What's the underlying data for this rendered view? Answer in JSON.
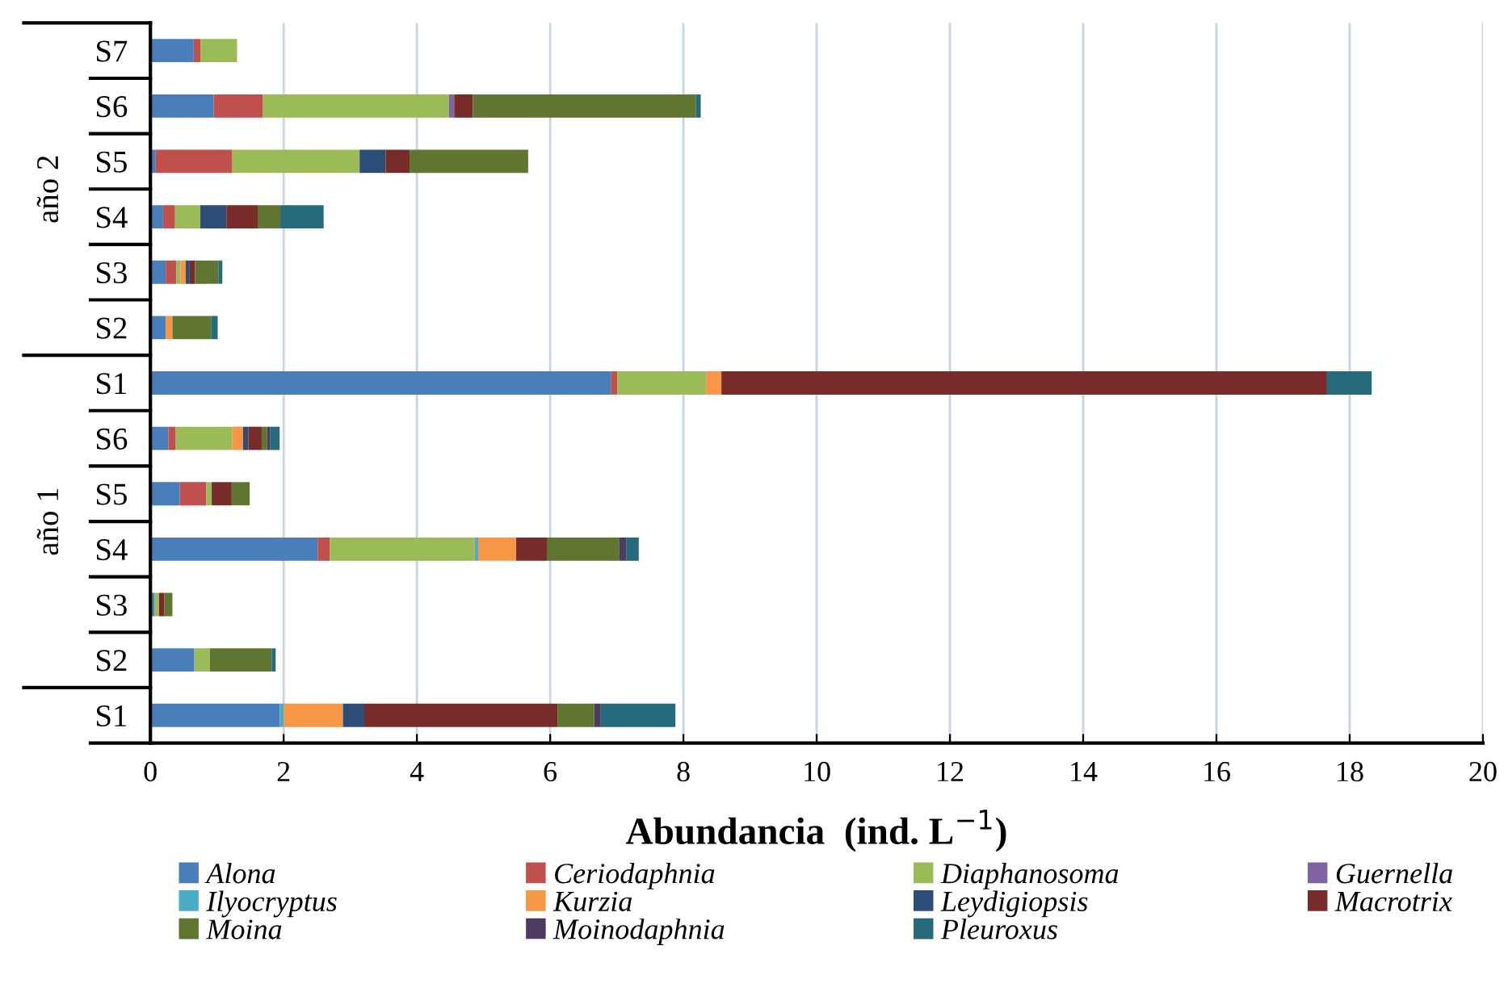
{
  "chart_data": {
    "type": "bar",
    "orientation": "horizontal",
    "stacked": true,
    "xlabel": "Abundancia  (ind. L$^{−1}$)",
    "categories": [
      "S7",
      "S6",
      "S5",
      "S4",
      "S3",
      "S2",
      "S1",
      "S6",
      "S5",
      "S4",
      "S3",
      "S2",
      "S1"
    ],
    "annotations": [
      "año 2",
      "año 1"
    ],
    "xlim": [
      0,
      20
    ],
    "xticks": [
      0,
      2,
      4,
      6,
      8,
      10,
      12,
      14,
      16,
      18,
      20
    ],
    "grid": "x",
    "legend": "bottom",
    "series": [
      {
        "name": "Alona",
        "color": "#4a7ebb",
        "values": [
          0.65,
          0.95,
          0.08,
          0.19,
          0.23,
          0.23,
          6.91,
          0.27,
          0.44,
          2.51,
          0.06,
          0.66,
          1.94
        ]
      },
      {
        "name": "Ceriodaphnia",
        "color": "#c0504d",
        "values": [
          0.1,
          0.74,
          1.15,
          0.18,
          0.16,
          0,
          0.1,
          0.11,
          0.4,
          0.18,
          0,
          0,
          0
        ]
      },
      {
        "name": "Diaphanosoma",
        "color": "#9bbb59",
        "values": [
          0.55,
          2.79,
          1.91,
          0.38,
          0.06,
          0,
          1.33,
          0.85,
          0.08,
          2.18,
          0.07,
          0.23,
          0
        ]
      },
      {
        "name": "Guernella",
        "color": "#8064a2",
        "values": [
          0,
          0.08,
          0,
          0,
          0,
          0,
          0,
          0,
          0,
          0,
          0,
          0,
          0
        ]
      },
      {
        "name": "Ilyocryptus",
        "color": "#4bacc6",
        "values": [
          0,
          0,
          0,
          0,
          0,
          0,
          0,
          0,
          0,
          0.05,
          0,
          0,
          0.06
        ]
      },
      {
        "name": "Kurzia",
        "color": "#f79646",
        "values": [
          0,
          0,
          0,
          0,
          0.08,
          0.1,
          0.23,
          0.16,
          0,
          0.57,
          0,
          0,
          0.89
        ]
      },
      {
        "name": "Leydigiopsis",
        "color": "#2c4d75",
        "values": [
          0,
          0,
          0.39,
          0.39,
          0.06,
          0,
          0,
          0.08,
          0,
          0,
          0,
          0,
          0.32
        ]
      },
      {
        "name": "Macrotrix",
        "color": "#772c2a",
        "values": [
          0,
          0.28,
          0.36,
          0.47,
          0.08,
          0,
          9.09,
          0.2,
          0.3,
          0.46,
          0.08,
          0,
          2.9
        ]
      },
      {
        "name": "Moina",
        "color": "#5f7530",
        "values": [
          0,
          3.35,
          1.78,
          0.34,
          0.35,
          0.58,
          0,
          0.08,
          0.27,
          1.09,
          0.12,
          0.93,
          0.55
        ]
      },
      {
        "name": "Moinodaphnia",
        "color": "#4d3b62",
        "values": [
          0,
          0,
          0,
          0,
          0,
          0,
          0,
          0.05,
          0,
          0.1,
          0,
          0,
          0.1
        ]
      },
      {
        "name": "Pleuroxus",
        "color": "#276a7c",
        "values": [
          0,
          0.07,
          0,
          0.65,
          0.06,
          0.1,
          0.67,
          0.14,
          0,
          0.19,
          0,
          0.06,
          1.12
        ]
      }
    ]
  }
}
